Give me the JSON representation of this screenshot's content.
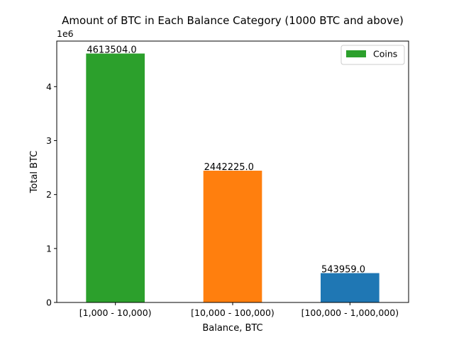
{
  "chart_data": {
    "type": "bar",
    "title": "Amount of BTC in Each Balance Category (1000 BTC and above)",
    "xlabel": "Balance, BTC",
    "ylabel": "Total BTC",
    "y_offset_text": "1e6",
    "categories": [
      "[1,000 - 10,000)",
      "[10,000 - 100,000)",
      "[100,000 - 1,000,000)"
    ],
    "values": [
      4613504.0,
      2442225.0,
      543959.0
    ],
    "data_labels": [
      "4613504.0",
      "2442225.0",
      "543959.0"
    ],
    "bar_colors": [
      "#2ca02c",
      "#ff7f0e",
      "#1f77b4"
    ],
    "ylim": [
      0,
      4844179
    ],
    "y_ticks": [
      0,
      1000000,
      2000000,
      3000000,
      4000000
    ],
    "y_tick_labels": [
      "0",
      "1",
      "2",
      "3",
      "4"
    ],
    "grid": false,
    "legend": {
      "position": "top-right",
      "entries": [
        {
          "label": "Coins",
          "color": "#2ca02c"
        }
      ]
    }
  }
}
